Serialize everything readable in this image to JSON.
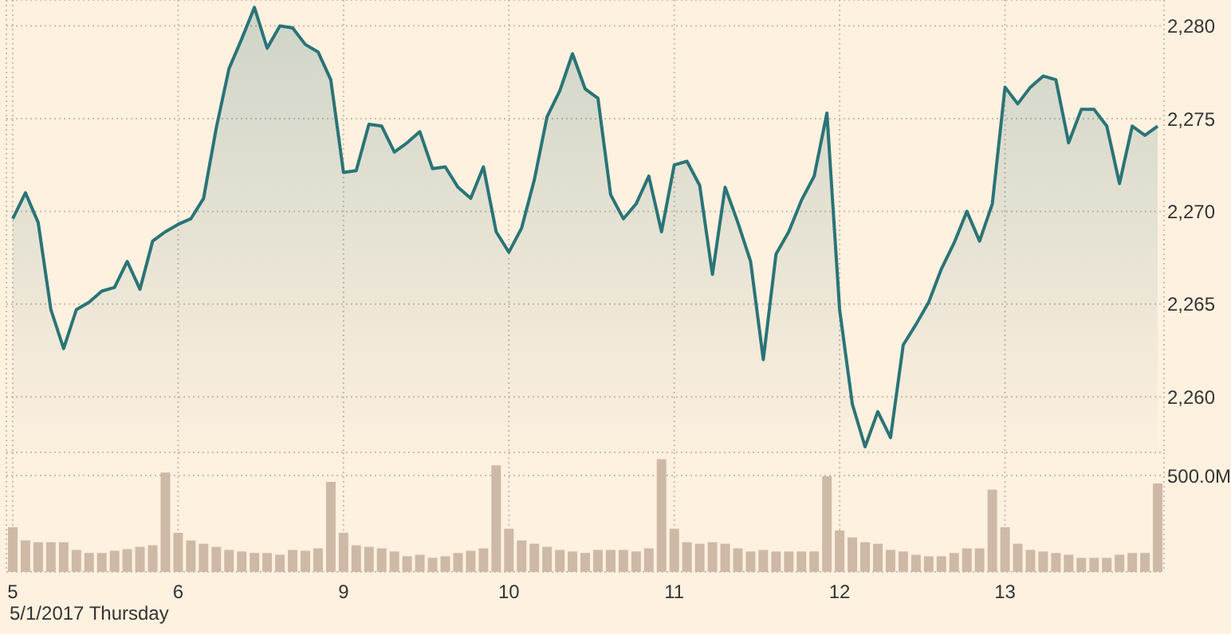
{
  "chart_data": [
    {
      "type": "area",
      "categories": [
        "5",
        null,
        null,
        null,
        null,
        null,
        null,
        null,
        null,
        null,
        null,
        null,
        null,
        "6",
        null,
        null,
        null,
        null,
        null,
        null,
        null,
        null,
        null,
        null,
        null,
        null,
        "9",
        null,
        null,
        null,
        null,
        null,
        null,
        null,
        null,
        null,
        null,
        null,
        null,
        "10",
        null,
        null,
        null,
        null,
        null,
        null,
        null,
        null,
        null,
        null,
        null,
        null,
        "11",
        null,
        null,
        null,
        null,
        null,
        null,
        null,
        null,
        null,
        null,
        null,
        null,
        "12",
        null,
        null,
        null,
        null,
        null,
        null,
        null,
        null,
        null,
        null,
        null,
        null,
        "13",
        null,
        null,
        null,
        null,
        null,
        null,
        null,
        null,
        null,
        null,
        null,
        null
      ],
      "series": [
        {
          "color": "#2a7477",
          "values": [
            2269.6,
            2271.0,
            2269.4,
            2264.7,
            2262.6,
            2264.7,
            2265.1,
            2265.7,
            2265.9,
            2267.3,
            2265.8,
            2268.4,
            2268.9,
            2269.3,
            2269.6,
            2270.7,
            2274.5,
            2277.7,
            2279.3,
            2281.0,
            2278.8,
            2280.0,
            2279.9,
            2279.0,
            2278.6,
            2277.1,
            2272.1,
            2272.2,
            2274.7,
            2274.6,
            2273.2,
            2273.7,
            2274.3,
            2272.3,
            2272.4,
            2271.3,
            2270.7,
            2272.4,
            2268.9,
            2267.8,
            2269.1,
            2271.7,
            2275.1,
            2276.5,
            2278.5,
            2276.6,
            2276.1,
            2270.9,
            2269.6,
            2270.4,
            2271.9,
            2268.9,
            2272.5,
            2272.7,
            2271.4,
            2266.6,
            2271.3,
            2269.4,
            2267.3,
            2262.0,
            2267.7,
            2268.9,
            2270.6,
            2271.9,
            2275.3,
            2264.7,
            2259.6,
            2257.3,
            2259.2,
            2257.8,
            2262.8,
            2263.9,
            2265.1,
            2266.9,
            2268.3,
            2270.0,
            2268.4,
            2270.4,
            2276.7,
            2275.8,
            2276.7,
            2277.3,
            2277.1,
            2273.7,
            2275.5,
            2275.5,
            2274.6,
            2271.5,
            2274.6,
            2274.1,
            2274.6
          ]
        }
      ],
      "ylim": [
        2257,
        2281.4
      ],
      "yticks": [
        {
          "value": 2260,
          "label": "2,260"
        },
        {
          "value": 2265,
          "label": "2,265"
        },
        {
          "value": 2270,
          "label": "2,270"
        },
        {
          "value": 2275,
          "label": "2,275"
        },
        {
          "value": 2280,
          "label": "2,280"
        }
      ],
      "grid": true,
      "tick_labels": "y"
    },
    {
      "type": "bar",
      "categories": [
        "5",
        null,
        null,
        null,
        null,
        null,
        null,
        null,
        null,
        null,
        null,
        null,
        null,
        "6",
        null,
        null,
        null,
        null,
        null,
        null,
        null,
        null,
        null,
        null,
        null,
        null,
        "9",
        null,
        null,
        null,
        null,
        null,
        null,
        null,
        null,
        null,
        null,
        null,
        null,
        "10",
        null,
        null,
        null,
        null,
        null,
        null,
        null,
        null,
        null,
        null,
        null,
        null,
        "11",
        null,
        null,
        null,
        null,
        null,
        null,
        null,
        null,
        null,
        null,
        null,
        null,
        "12",
        null,
        null,
        null,
        null,
        null,
        null,
        null,
        null,
        null,
        null,
        null,
        null,
        "13",
        null,
        null,
        null,
        null,
        null,
        null,
        null,
        null,
        null,
        null,
        null,
        null
      ],
      "color": "#cdb9a5",
      "values": [
        232,
        163,
        154,
        154,
        154,
        114,
        98,
        98,
        110,
        118,
        130,
        138,
        516,
        203,
        163,
        146,
        130,
        114,
        106,
        98,
        98,
        89,
        114,
        110,
        122,
        467,
        203,
        138,
        130,
        122,
        106,
        81,
        89,
        73,
        81,
        98,
        110,
        122,
        553,
        224,
        163,
        146,
        130,
        114,
        106,
        98,
        114,
        114,
        114,
        106,
        122,
        585,
        224,
        154,
        146,
        154,
        146,
        122,
        106,
        114,
        106,
        106,
        106,
        106,
        496,
        215,
        179,
        154,
        146,
        114,
        106,
        89,
        81,
        81,
        98,
        122,
        122,
        427,
        232,
        146,
        114,
        106,
        98,
        89,
        73,
        73,
        73,
        89,
        98,
        98,
        459
      ],
      "ylim": [
        0,
        620
      ],
      "yticks": [
        {
          "value": 0,
          "label": null
        },
        {
          "value": 500,
          "label": "500.0M"
        }
      ],
      "grid": true,
      "annotations": [
        "5/1/2017 Thursday"
      ]
    }
  ]
}
